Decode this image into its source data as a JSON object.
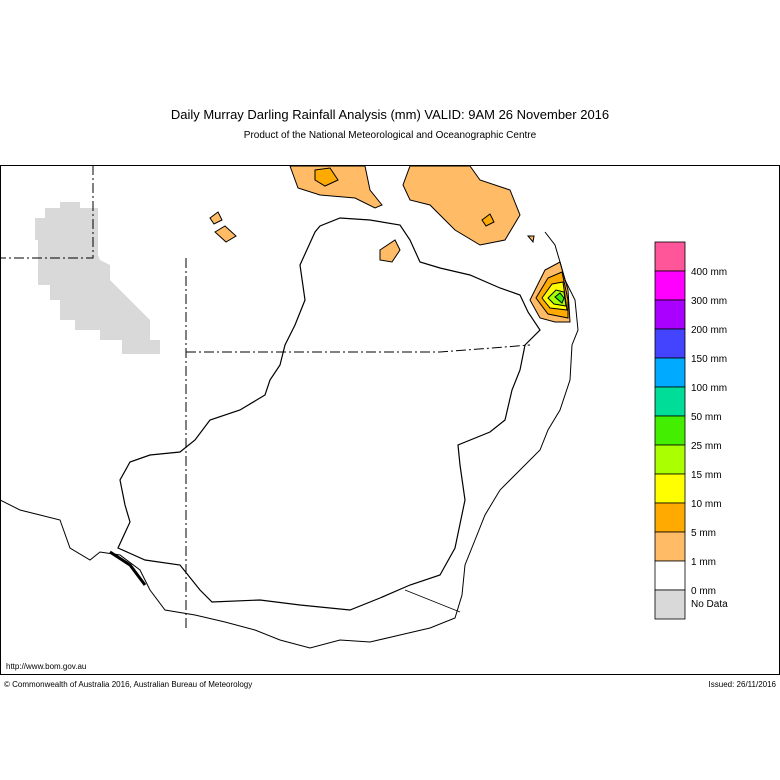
{
  "header": {
    "title": "Daily Murray Darling Rainfall Analysis (mm)  VALID: 9AM 26 November 2016",
    "subtitle": "Product of the National Meteorological and Oceanographic Centre"
  },
  "legend": {
    "colors": [
      "#ff5599",
      "#ff00ff",
      "#aa00ff",
      "#4444ff",
      "#00aaff",
      "#00dd99",
      "#44ee00",
      "#aaff00",
      "#ffff00",
      "#ffaa00",
      "#ffbb66",
      "#ffffff",
      "#d9d9d9"
    ],
    "labels": [
      "400 mm",
      "300 mm",
      "200 mm",
      "150 mm",
      "100 mm",
      "50 mm",
      "25 mm",
      "15 mm",
      "10 mm",
      "5 mm",
      "1 mm",
      "0 mm",
      "No Data"
    ]
  },
  "footer": {
    "url": "http://www.bom.gov.au",
    "copyright": "© Commonwealth of Australia 2016, Australian Bureau of Meteorology",
    "issued": "Issued: 26/11/2016"
  }
}
